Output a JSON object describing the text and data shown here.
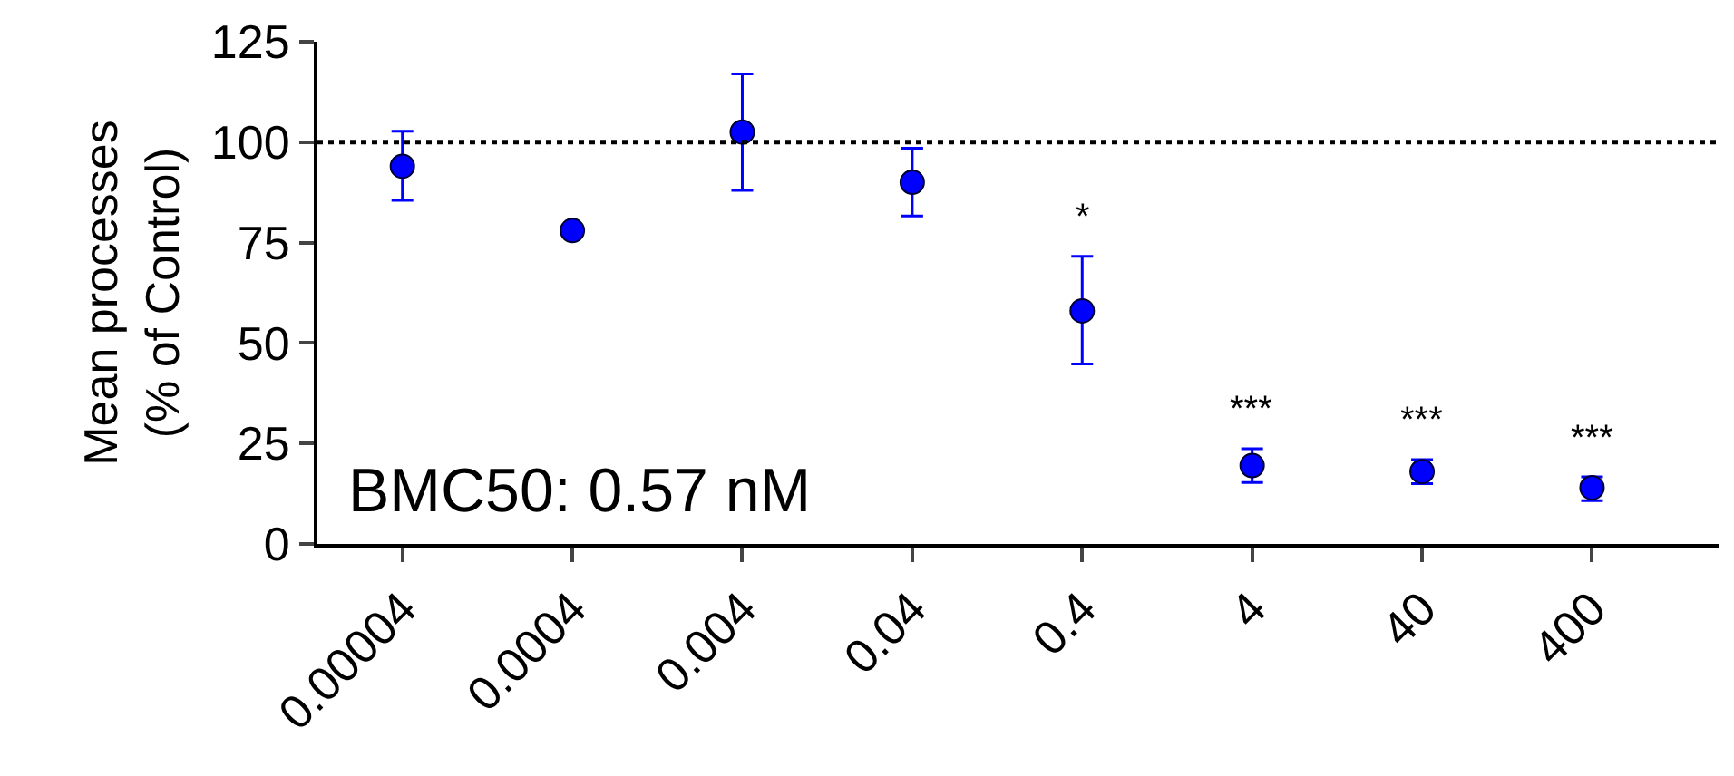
{
  "chart_data": {
    "type": "scatter",
    "ylabel": "Mean processes\n(% of Control)",
    "categories": [
      "0.00004",
      "0.0004",
      "0.004",
      "0.04",
      "0.4",
      "4",
      "40",
      "400"
    ],
    "series": [
      {
        "color": "#0000ff",
        "values": [
          94,
          78,
          102.5,
          90,
          58,
          19.5,
          18,
          14
        ],
        "errors": [
          [
            85.5,
            102.7
          ],
          null,
          [
            88,
            117
          ],
          [
            81.6,
            98.5
          ],
          [
            44.8,
            71.6
          ],
          [
            15.3,
            23.7
          ],
          [
            15,
            21
          ],
          [
            10.8,
            16.7
          ]
        ]
      }
    ],
    "ylim": [
      0,
      125
    ],
    "yticks": [
      0,
      25,
      50,
      75,
      100,
      125
    ],
    "ref_lines": [
      {
        "axis": "y",
        "value": 100,
        "color": "#000000",
        "line_style": "dotted"
      }
    ],
    "annotations": [
      "*",
      "***",
      "***",
      "***",
      "BMC50: 0.57 nM"
    ],
    "marker": "circle"
  }
}
